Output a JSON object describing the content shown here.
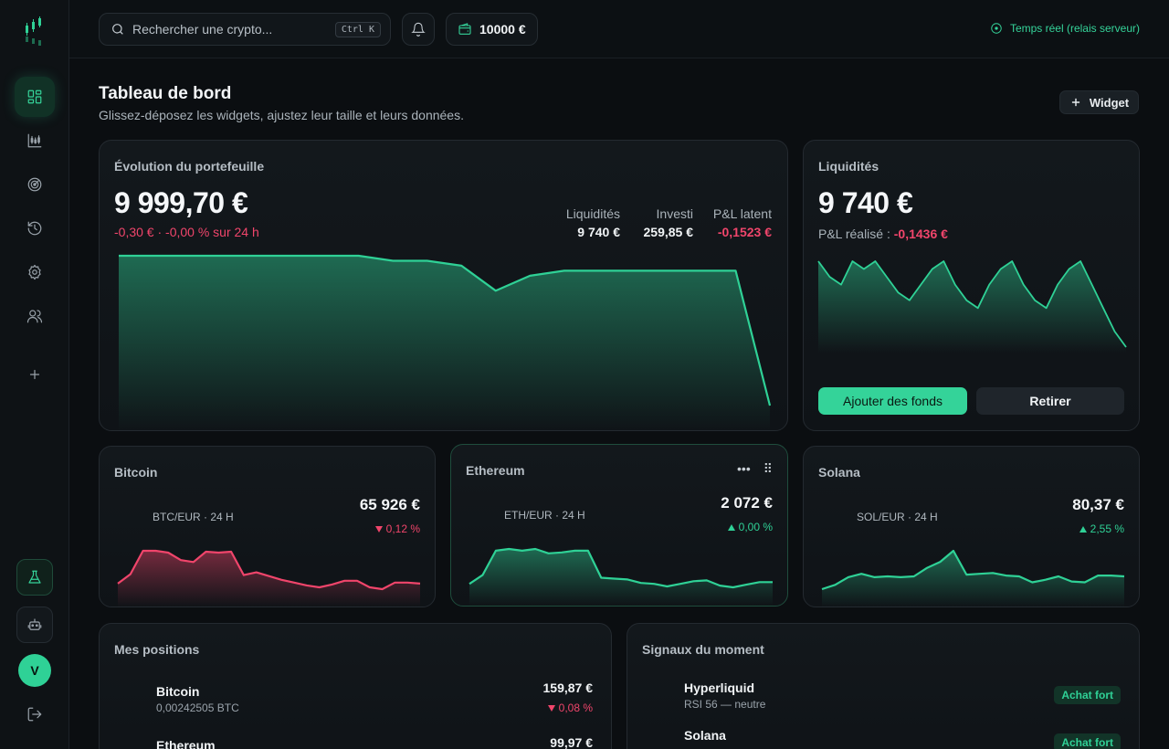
{
  "topbar": {
    "search_placeholder": "Rechercher une crypto...",
    "shortcut": "Ctrl K",
    "wallet_balance": "10000 €",
    "realtime_status": "Temps réel (relais serveur)"
  },
  "sidebar": {
    "items": [
      {
        "name": "dashboard",
        "icon": "grid-icon",
        "active": true
      },
      {
        "name": "markets",
        "icon": "candlestick-icon"
      },
      {
        "name": "signals",
        "icon": "radar-icon"
      },
      {
        "name": "history",
        "icon": "history-icon"
      },
      {
        "name": "settings",
        "icon": "gear-icon"
      },
      {
        "name": "community",
        "icon": "users-icon"
      }
    ],
    "avatar_initial": "V"
  },
  "header": {
    "title": "Tableau de bord",
    "subtitle": "Glissez-déposez les widgets, ajustez leur taille et leurs données.",
    "add_widget_label": "Widget"
  },
  "portfolio": {
    "title": "Évolution du portefeuille",
    "value": "9 999,70 €",
    "change": "-0,30 € · -0,00 % sur 24 h",
    "stats": [
      {
        "label": "Liquidités",
        "value": "9 740 €",
        "color": "#f1f4f6"
      },
      {
        "label": "Investi",
        "value": "259,85 €",
        "color": "#f1f4f6"
      },
      {
        "label": "P&L latent",
        "value": "-0,1523 €",
        "color": "#f0456b"
      }
    ],
    "series": [
      10000,
      10000,
      10000,
      10000,
      10000,
      10000,
      10000,
      10000,
      9999.99,
      9999.99,
      9999.98,
      9999.93,
      9999.96,
      9999.97,
      9999.97,
      9999.97,
      9999.97,
      9999.97,
      9999.97,
      9999.7
    ]
  },
  "liquidity": {
    "title": "Liquidités",
    "value": "9 740 €",
    "realized_label": "P&L réalisé :",
    "realized_value": "-0,1436 €",
    "add_funds_label": "Ajouter des fonds",
    "withdraw_label": "Retirer",
    "series": [
      10,
      8,
      7,
      10,
      9,
      10,
      8,
      6,
      5,
      7,
      9,
      10,
      7,
      5,
      4,
      7,
      9,
      10,
      7,
      5,
      4,
      7,
      9,
      10,
      7,
      4,
      1,
      -1
    ]
  },
  "tickers": [
    {
      "name": "Bitcoin",
      "pair": "BTC/EUR · 24 H",
      "price": "65 926 €",
      "change": "0,12 %",
      "direction": "down",
      "color": "#f0456b",
      "series": [
        2,
        4,
        9,
        9,
        8.6,
        7,
        6.6,
        8.8,
        8.6,
        8.8,
        3.8,
        4.4,
        3.6,
        2.8,
        2.2,
        1.6,
        1.2,
        1.8,
        2.6,
        2.6,
        1.2,
        0.8,
        2.2,
        2.2,
        2
      ]
    },
    {
      "name": "Ethereum",
      "pair": "ETH/EUR · 24 H",
      "price": "2 072 €",
      "change": "0,00 %",
      "direction": "up",
      "color": "#2fd196",
      "series": [
        2,
        4,
        9.6,
        10,
        9.6,
        10,
        9,
        9.2,
        9.6,
        9.6,
        3.4,
        3.2,
        3,
        2.2,
        2,
        1.4,
        2,
        2.6,
        2.8,
        1.6,
        1.2,
        1.8,
        2.4,
        2.4
      ]
    },
    {
      "name": "Solana",
      "pair": "SOL/EUR · 24 H",
      "price": "80,37 €",
      "change": "2,55 %",
      "direction": "up",
      "color": "#2fd196",
      "series": [
        1,
        2,
        3.8,
        4.6,
        3.8,
        4,
        3.8,
        4,
        6,
        7.4,
        10,
        4.4,
        4.6,
        4.8,
        4.2,
        4.0,
        2.6,
        3.2,
        4.0,
        2.8,
        2.6,
        4.2,
        4.2,
        4.0
      ]
    }
  ],
  "positions": {
    "title": "Mes positions",
    "items": [
      {
        "name": "Bitcoin",
        "qty": "0,00242505 BTC",
        "value": "159,87 €",
        "change": "0,08 %",
        "direction": "down"
      },
      {
        "name": "Ethereum",
        "qty": "",
        "value": "99,97 €",
        "change": "",
        "direction": ""
      }
    ]
  },
  "signals": {
    "title": "Signaux du moment",
    "items": [
      {
        "name": "Hyperliquid",
        "detail": "RSI 56 — neutre",
        "badge": "Achat fort"
      },
      {
        "name": "Solana",
        "detail": "",
        "badge": "Achat fort"
      }
    ]
  },
  "colors": {
    "accent": "#2fd196",
    "negative": "#f0456b",
    "background": "#0b0e11"
  }
}
